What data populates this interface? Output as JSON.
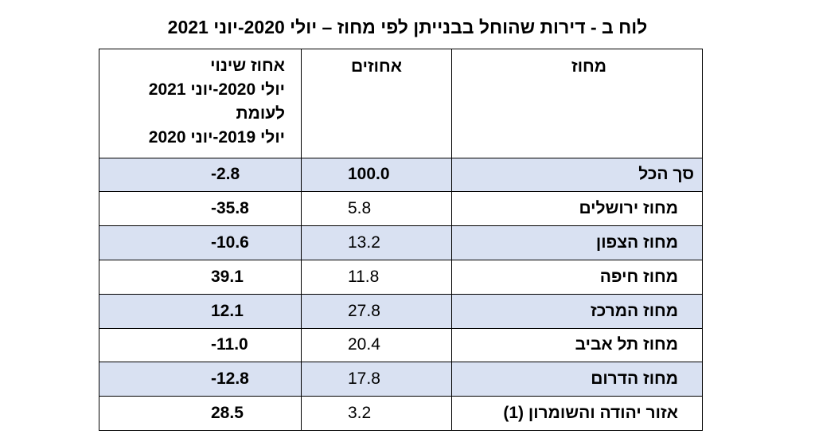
{
  "title": "לוח ב - דירות שהוחל בבנייתן לפי מחוז – יולי 2020-יוני 2021",
  "headers": {
    "district": "מחוז",
    "percent": "אחוזים",
    "change_lines": [
      "אחוז שינוי",
      "יולי 2020-יוני 2021",
      "לעומת",
      "יולי 2019-יוני 2020"
    ]
  },
  "rows": [
    {
      "name": "סך הכל",
      "percent": "100.0",
      "change": "-2.8"
    },
    {
      "name": "מחוז ירושלים",
      "percent": "5.8",
      "change": "-35.8"
    },
    {
      "name": "מחוז הצפון",
      "percent": "13.2",
      "change": "-10.6"
    },
    {
      "name": "מחוז חיפה",
      "percent": "11.8",
      "change": "39.1"
    },
    {
      "name": "מחוז המרכז",
      "percent": "27.8",
      "change": "12.1"
    },
    {
      "name": "מחוז תל אביב",
      "percent": "20.4",
      "change": "-11.0"
    },
    {
      "name": "מחוז הדרום",
      "percent": "17.8",
      "change": "-12.8"
    },
    {
      "name": "אזור יהודה והשומרון (1)",
      "percent": "3.2",
      "change": "28.5"
    }
  ],
  "colors": {
    "shaded_row": "#d9e1f2",
    "border": "#000000"
  }
}
